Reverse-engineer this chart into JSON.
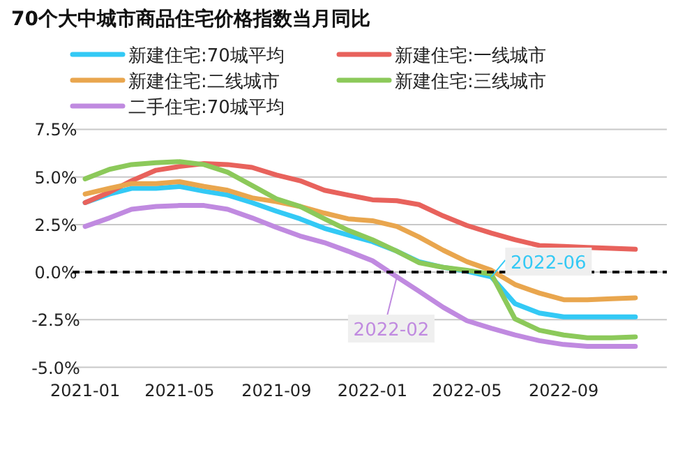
{
  "chart_data": {
    "type": "line",
    "title": "70个大中城市商品住宅价格指数当月同比",
    "x": [
      "2021-01",
      "2021-02",
      "2021-03",
      "2021-04",
      "2021-05",
      "2021-06",
      "2021-07",
      "2021-08",
      "2021-09",
      "2021-10",
      "2021-11",
      "2021-12",
      "2022-01",
      "2022-02",
      "2022-03",
      "2022-04",
      "2022-05",
      "2022-06",
      "2022-07",
      "2022-08",
      "2022-09",
      "2022-10",
      "2022-11",
      "2022-12"
    ],
    "series": [
      {
        "name": "新建住宅:70城平均",
        "color": "#33c9f5",
        "values": [
          3.65,
          4.1,
          4.4,
          4.4,
          4.5,
          4.25,
          4.05,
          3.65,
          3.2,
          2.8,
          2.3,
          1.95,
          1.6,
          1.1,
          0.55,
          0.25,
          0.05,
          -0.25,
          -1.65,
          -2.15,
          -2.35,
          -2.35,
          -2.35,
          -2.35
        ]
      },
      {
        "name": "新建住宅:一线城市",
        "color": "#e8625c",
        "values": [
          3.65,
          4.2,
          4.8,
          5.35,
          5.55,
          5.7,
          5.65,
          5.5,
          5.1,
          4.8,
          4.3,
          4.05,
          3.8,
          3.75,
          3.55,
          2.95,
          2.45,
          2.05,
          1.7,
          1.4,
          1.35,
          1.3,
          1.25,
          1.2
        ]
      },
      {
        "name": "新建住宅:二线城市",
        "color": "#e9a64e",
        "values": [
          4.1,
          4.4,
          4.65,
          4.65,
          4.75,
          4.5,
          4.3,
          3.9,
          3.7,
          3.45,
          3.1,
          2.8,
          2.7,
          2.4,
          1.85,
          1.15,
          0.55,
          0.1,
          -0.65,
          -1.1,
          -1.45,
          -1.45,
          -1.4,
          -1.35
        ]
      },
      {
        "name": "新建住宅:三线城市",
        "color": "#8cc95a",
        "values": [
          4.9,
          5.4,
          5.65,
          5.75,
          5.8,
          5.65,
          5.25,
          4.55,
          3.85,
          3.45,
          2.8,
          2.2,
          1.7,
          1.1,
          0.5,
          0.25,
          0.1,
          -0.1,
          -2.45,
          -3.05,
          -3.3,
          -3.45,
          -3.45,
          -3.4
        ]
      },
      {
        "name": "二手住宅:70城平均",
        "color": "#c08ae0",
        "values": [
          2.4,
          2.85,
          3.3,
          3.45,
          3.5,
          3.5,
          3.3,
          2.85,
          2.35,
          1.9,
          1.55,
          1.1,
          0.6,
          -0.25,
          -1.0,
          -1.85,
          -2.55,
          -2.95,
          -3.3,
          -3.6,
          -3.8,
          -3.9,
          -3.9,
          -3.9
        ]
      }
    ],
    "xlim": [
      "2020-12-16",
      "2023-01-10"
    ],
    "xticks": [
      "2021-01",
      "2021-05",
      "2021-09",
      "2022-01",
      "2022-05",
      "2022-09"
    ],
    "ylim": [
      -5,
      7.5
    ],
    "yticks": [
      {
        "value": -5,
        "label": "-5.0%"
      },
      {
        "value": -2.5,
        "label": "-2.5%"
      },
      {
        "value": 0,
        "label": "0.0%"
      },
      {
        "value": 2.5,
        "label": "2.5%"
      },
      {
        "value": 5,
        "label": "5.0%"
      },
      {
        "value": 7.5,
        "label": "7.5%"
      }
    ],
    "grid": "y",
    "legend": "top",
    "marker": "none",
    "line_style": "solid",
    "ref_lines": [
      {
        "axis": "y",
        "value": 0,
        "color": "#000000",
        "line_style": "dashed"
      }
    ],
    "annotations": [
      {
        "text": "2022-06",
        "x": "2022-06",
        "y": -0.25
      },
      {
        "text": "2022-02",
        "x": "2022-02",
        "y": -0.25
      }
    ]
  }
}
